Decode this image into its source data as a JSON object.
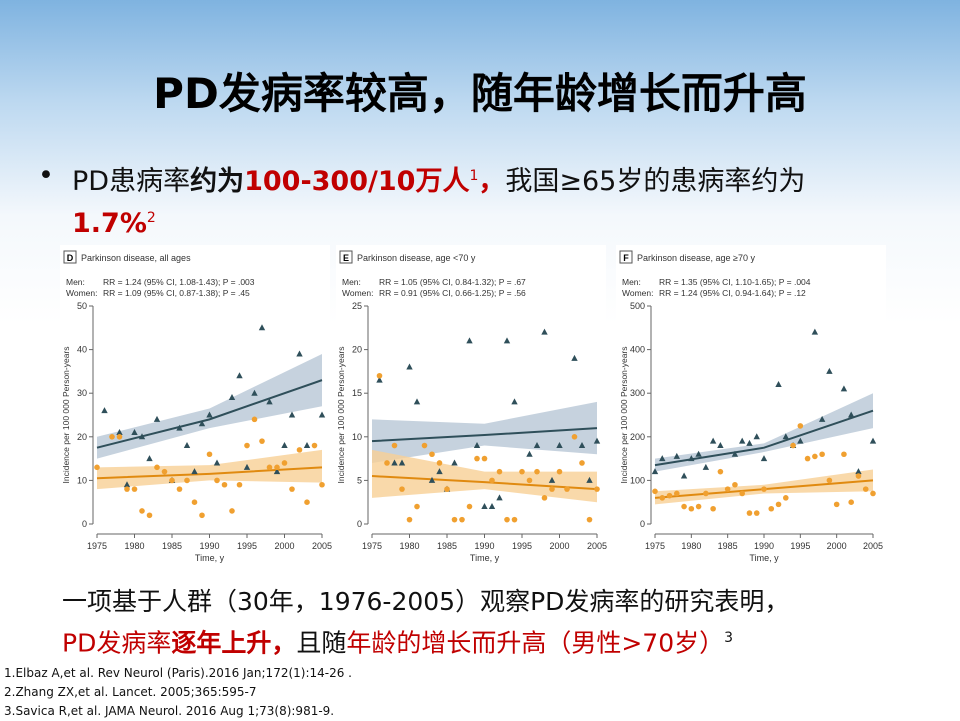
{
  "slide": {
    "title": "PD发病率较高，随年龄增长而升高",
    "bullet": [
      "PD患病率",
      "约为",
      "100-300/10万人",
      "1",
      "，",
      "我国≥65岁的患病率约为",
      "1.7%",
      "2"
    ],
    "finding": [
      "一项基于人群（30年，1976-2005）观察PD发病率的研究表明，",
      "PD发病率",
      "逐年上升，",
      "且随",
      "年龄的增长而升高（男性>70岁）",
      "3"
    ],
    "references": [
      "1.Elbaz A,et al. Rev Neurol (Paris).2016 Jan;172(1):14-26 .",
      "2.Zhang ZX,et al. Lancet. 2005;365:595-7",
      "3.Savica R,et al. JAMA Neurol. 2016 Aug 1;73(8):981-9."
    ]
  },
  "chart_data": [
    {
      "type": "scatter",
      "panel": "D",
      "title": "Parkinson disease, all ages",
      "annotations": [
        "Men:",
        "RR = 1.24 (95% CI, 1.08-1.43); P = .003",
        "Women:",
        "RR = 1.09 (95% CI, 0.87-1.38); P = .45"
      ],
      "x_label": "Time, y",
      "y_label": "Incidence per 100 000 Person-years",
      "xlim": [
        1975,
        2005
      ],
      "xticks": [
        1975,
        1980,
        1985,
        1990,
        1995,
        2000,
        2005
      ],
      "ylim": [
        0,
        50
      ],
      "yticks": [
        0,
        10,
        20,
        30,
        40,
        50
      ],
      "series": [
        {
          "marker": "triangle",
          "color": "#2f4f5a",
          "band_color": "#b8c7d6",
          "x": [
            1976,
            1978,
            1979,
            1980,
            1981,
            1982,
            1983,
            1985,
            1986,
            1987,
            1988,
            1989,
            1990,
            1991,
            1993,
            1994,
            1995,
            1996,
            1997,
            1998,
            1999,
            2000,
            2001,
            2002,
            2003,
            2005
          ],
          "values": [
            26,
            21,
            9,
            21,
            20,
            15,
            24,
            10,
            22,
            18,
            12,
            23,
            25,
            14,
            29,
            34,
            13,
            30,
            45,
            28,
            12,
            18,
            25,
            39,
            18,
            25
          ],
          "fit": {
            "x": [
              1975,
              1990,
              2005
            ],
            "values": [
              17.5,
              24,
              33
            ],
            "lower": [
              15,
              22,
              27
            ],
            "upper": [
              20,
              26.5,
              39
            ]
          }
        },
        {
          "marker": "circle",
          "color": "#f0a030",
          "band_color": "#f8cf95",
          "x": [
            1975,
            1977,
            1978,
            1979,
            1980,
            1981,
            1982,
            1983,
            1984,
            1985,
            1986,
            1987,
            1988,
            1989,
            1990,
            1991,
            1992,
            1993,
            1994,
            1995,
            1996,
            1997,
            1998,
            1999,
            2000,
            2001,
            2002,
            2003,
            2004,
            2005
          ],
          "values": [
            13,
            20,
            20,
            8,
            8,
            3,
            2,
            13,
            12,
            10,
            8,
            10,
            5,
            2,
            16,
            10,
            9,
            3,
            9,
            18,
            24,
            19,
            13,
            13,
            14,
            8,
            17,
            5,
            18,
            9
          ],
          "fit": {
            "x": [
              1975,
              1990,
              2005
            ],
            "values": [
              10.5,
              11.5,
              13
            ],
            "lower": [
              8,
              10,
              9.5
            ],
            "upper": [
              13,
              13.5,
              17
            ]
          }
        }
      ]
    },
    {
      "type": "scatter",
      "panel": "E",
      "title": "Parkinson disease, age <70 y",
      "annotations": [
        "Men:",
        "RR = 1.05 (95% CI, 0.84-1.32); P = .67",
        "Women:",
        "RR = 0.91 (95% CI, 0.66-1.25); P = .56"
      ],
      "x_label": "Time, y",
      "y_label": "Incidence per 100 000 Person-years",
      "xlim": [
        1975,
        2005
      ],
      "xticks": [
        1975,
        1980,
        1985,
        1990,
        1995,
        2000,
        2005
      ],
      "ylim": [
        0,
        25
      ],
      "yticks": [
        0,
        5,
        10,
        15,
        20,
        25
      ],
      "series": [
        {
          "marker": "triangle",
          "color": "#2f4f5a",
          "band_color": "#b8c7d6",
          "x": [
            1976,
            1978,
            1979,
            1980,
            1981,
            1983,
            1984,
            1985,
            1986,
            1988,
            1989,
            1990,
            1991,
            1992,
            1993,
            1994,
            1996,
            1997,
            1998,
            1999,
            2000,
            2002,
            2003,
            2004,
            2005
          ],
          "values": [
            16.5,
            7,
            7,
            18,
            14,
            5,
            6,
            4,
            7,
            21,
            9,
            2,
            2,
            3,
            21,
            14,
            8,
            9,
            22,
            5,
            9,
            19,
            9,
            5,
            9.5
          ],
          "fit": {
            "x": [
              1975,
              1990,
              2005
            ],
            "values": [
              9.5,
              10.2,
              11
            ],
            "lower": [
              7,
              9,
              8
            ],
            "upper": [
              12,
              11.5,
              14
            ]
          }
        },
        {
          "marker": "circle",
          "color": "#f0a030",
          "band_color": "#f8cf95",
          "x": [
            1976,
            1977,
            1978,
            1979,
            1980,
            1981,
            1982,
            1983,
            1984,
            1985,
            1986,
            1987,
            1988,
            1989,
            1990,
            1991,
            1992,
            1993,
            1994,
            1995,
            1996,
            1997,
            1998,
            1999,
            2000,
            2001,
            2002,
            2003,
            2004,
            2005
          ],
          "values": [
            17,
            7,
            9,
            4,
            0.5,
            2,
            9,
            8,
            7,
            4,
            0.5,
            0.5,
            2,
            7.5,
            7.5,
            5,
            6,
            0.5,
            0.5,
            6,
            5,
            6,
            3,
            4,
            6,
            4,
            10,
            7,
            0.5,
            4
          ],
          "fit": {
            "x": [
              1975,
              1990,
              2005
            ],
            "values": [
              5.5,
              4.8,
              4
            ],
            "lower": [
              3,
              4,
              2.5
            ],
            "upper": [
              8.5,
              6,
              6
            ]
          }
        }
      ]
    },
    {
      "type": "scatter",
      "panel": "F",
      "title": "Parkinson disease, age ≥70 y",
      "annotations": [
        "Men:",
        "RR = 1.35 (95% CI, 1.10-1.65); P = .004",
        "Women:",
        "RR = 1.24 (95% CI, 0.94-1.64); P = .12"
      ],
      "x_label": "Time, y",
      "y_label": "Incidence per 100 000 Person-years",
      "xlim": [
        1975,
        2005
      ],
      "xticks": [
        1975,
        1980,
        1985,
        1990,
        1995,
        2000,
        2005
      ],
      "ylim": [
        0,
        500
      ],
      "yticks": [
        0,
        100,
        200,
        300,
        400,
        500
      ],
      "series": [
        {
          "marker": "triangle",
          "color": "#2f4f5a",
          "band_color": "#b8c7d6",
          "x": [
            1975,
            1976,
            1978,
            1979,
            1980,
            1981,
            1982,
            1983,
            1984,
            1986,
            1987,
            1988,
            1989,
            1990,
            1992,
            1993,
            1994,
            1995,
            1997,
            1998,
            1999,
            2001,
            2002,
            2003,
            2005
          ],
          "values": [
            120,
            150,
            155,
            110,
            150,
            160,
            130,
            190,
            180,
            160,
            190,
            185,
            200,
            150,
            320,
            200,
            180,
            190,
            440,
            240,
            350,
            310,
            250,
            120,
            190
          ],
          "fit": {
            "x": [
              1975,
              1990,
              2005
            ],
            "values": [
              135,
              175,
              260
            ],
            "lower": [
              120,
              165,
              220
            ],
            "upper": [
              150,
              185,
              300
            ]
          }
        },
        {
          "marker": "circle",
          "color": "#f0a030",
          "band_color": "#f8cf95",
          "x": [
            1975,
            1976,
            1977,
            1978,
            1979,
            1980,
            1981,
            1982,
            1983,
            1984,
            1985,
            1986,
            1987,
            1988,
            1989,
            1990,
            1991,
            1992,
            1993,
            1994,
            1995,
            1996,
            1997,
            1998,
            1999,
            2000,
            2001,
            2002,
            2003,
            2004,
            2005
          ],
          "values": [
            75,
            60,
            65,
            70,
            40,
            35,
            40,
            70,
            35,
            120,
            80,
            90,
            70,
            25,
            25,
            80,
            35,
            45,
            60,
            180,
            225,
            150,
            155,
            160,
            100,
            45,
            160,
            50,
            110,
            80,
            70
          ],
          "fit": {
            "x": [
              1975,
              1990,
              2005
            ],
            "values": [
              60,
              80,
              100
            ],
            "lower": [
              45,
              70,
              75
            ],
            "upper": [
              75,
              90,
              125
            ]
          }
        }
      ]
    }
  ]
}
